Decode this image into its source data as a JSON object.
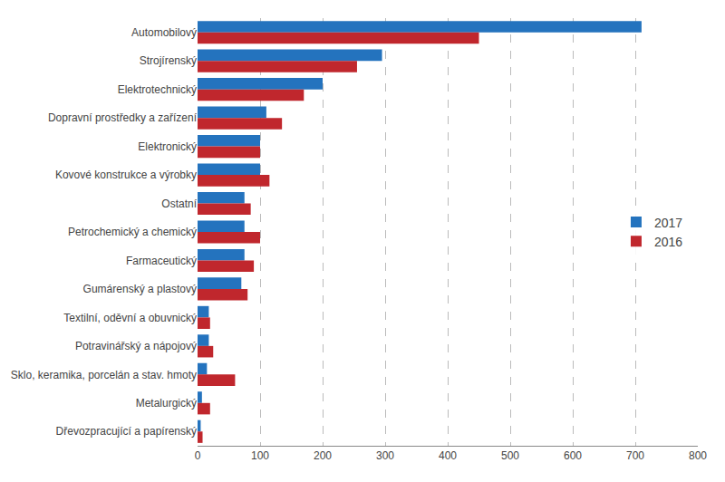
{
  "chart_data": {
    "type": "bar",
    "orientation": "horizontal",
    "categories": [
      "Automobilový",
      "Strojírenský",
      "Elektrotechnický",
      "Dopravní prostředky a zařízení",
      "Elektronický",
      "Kovové konstrukce a výrobky",
      "Ostatní",
      "Petrochemický a chemický",
      "Farmaceutický",
      "Gumárenský a plastový",
      "Textilní, oděvní a obuvnický",
      "Potravinářský a nápojový",
      "Sklo, keramika, porcelán a stav. hmoty",
      "Metalurgický",
      "Dřevozpracující a papírenský"
    ],
    "series": [
      {
        "name": "2017",
        "color": "#2473be",
        "values": [
          710,
          295,
          200,
          110,
          100,
          100,
          75,
          75,
          75,
          70,
          18,
          18,
          15,
          7,
          5
        ]
      },
      {
        "name": "2016",
        "color": "#c0272d",
        "values": [
          450,
          255,
          170,
          135,
          100,
          115,
          85,
          100,
          90,
          80,
          20,
          25,
          60,
          20,
          8
        ]
      }
    ],
    "xlim": [
      0,
      800
    ],
    "xticks": [
      0,
      100,
      200,
      300,
      400,
      500,
      600,
      700,
      800
    ],
    "grid": true,
    "legend": "right"
  }
}
